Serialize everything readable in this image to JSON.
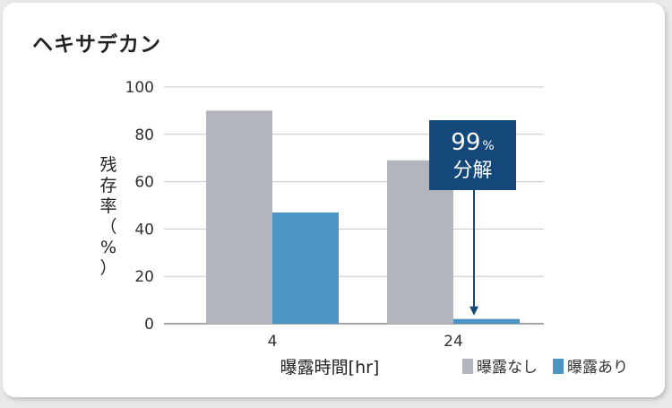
{
  "chart_data": {
    "type": "bar",
    "title": "ヘキサデカン",
    "xlabel": "曝露時間[hr]",
    "ylabel": "残存率（%）",
    "ylim": [
      0,
      100
    ],
    "yticks": [
      0,
      20,
      40,
      60,
      80,
      100
    ],
    "categories": [
      "4",
      "24"
    ],
    "series": [
      {
        "name": "曝露なし",
        "values": [
          90,
          69
        ]
      },
      {
        "name": "曝露あり",
        "values": [
          47,
          2
        ]
      }
    ],
    "colors": [
      "#b2b5bd",
      "#4a95c3"
    ],
    "grid": true,
    "legend_position": "bottom-right",
    "annotation": {
      "value": "99",
      "unit": "%",
      "text": "分解",
      "color": "#14477a"
    }
  }
}
